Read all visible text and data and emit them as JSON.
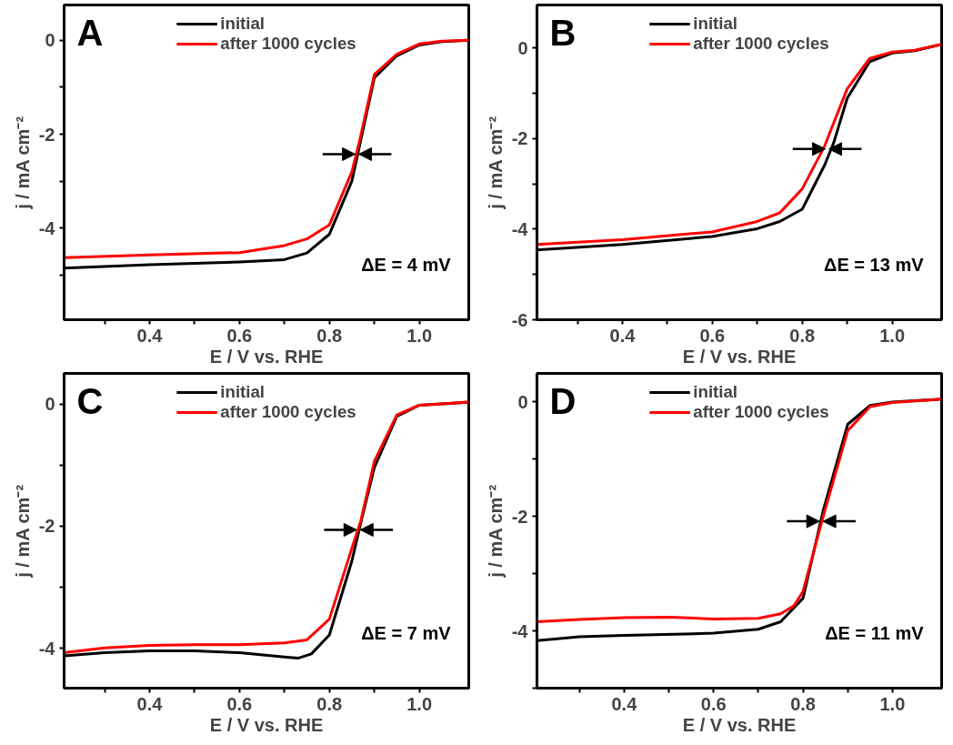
{
  "chart_data": [
    {
      "type": "line",
      "xlabel": "E / V vs. RHE",
      "ylabel": "j / mA cm⁻²",
      "xlim": [
        0.21,
        1.11
      ],
      "ylim": [
        -5.95,
        0.75
      ],
      "xticks": [
        {
          "value": 0.3,
          "label": null
        },
        0.4,
        {
          "value": 0.5,
          "label": null
        },
        0.6,
        {
          "value": 0.7,
          "label": null
        },
        0.8,
        {
          "value": 0.9,
          "label": null
        },
        {
          "value": 1.0,
          "label": "1.0"
        }
      ],
      "yticks": [
        {
          "value": -5,
          "label": null
        },
        -4,
        {
          "value": -3,
          "label": null
        },
        -2,
        {
          "value": -1,
          "label": null
        },
        0
      ],
      "legend": "top",
      "grid": false,
      "line_style": "solid",
      "marker": "none",
      "annotations": [
        "A",
        "ΔE = 4 mV"
      ],
      "series": [
        {
          "name": "initial",
          "color": "#000000",
          "x": [
            0.21,
            0.4,
            0.6,
            0.7,
            0.75,
            0.8,
            0.85,
            0.867,
            0.9,
            0.95,
            1.0,
            1.05,
            1.11
          ],
          "values": [
            -4.85,
            -4.78,
            -4.72,
            -4.67,
            -4.53,
            -4.13,
            -3.0,
            -2.25,
            -0.8,
            -0.33,
            -0.1,
            -0.03,
            0.0
          ]
        },
        {
          "name": "after 1000 cycles",
          "color": "#ff0000",
          "x": [
            0.21,
            0.4,
            0.6,
            0.7,
            0.75,
            0.8,
            0.85,
            0.867,
            0.9,
            0.95,
            1.0,
            1.05,
            1.11
          ],
          "values": [
            -4.63,
            -4.57,
            -4.52,
            -4.37,
            -4.23,
            -3.93,
            -2.8,
            -2.15,
            -0.73,
            -0.3,
            -0.08,
            -0.02,
            0.0
          ]
        }
      ]
    },
    {
      "type": "line",
      "xlabel": "E / V vs. RHE",
      "ylabel": "j / mA cm⁻²",
      "xlim": [
        0.21,
        1.11
      ],
      "ylim": [
        -6,
        0.95
      ],
      "xticks": [
        {
          "value": 0.3,
          "label": null
        },
        0.4,
        {
          "value": 0.5,
          "label": null
        },
        0.6,
        {
          "value": 0.7,
          "label": null
        },
        0.8,
        {
          "value": 0.9,
          "label": null
        },
        {
          "value": 1.0,
          "label": "1.0"
        }
      ],
      "yticks": [
        -6,
        {
          "value": -5,
          "label": null
        },
        -4,
        {
          "value": -3,
          "label": null
        },
        -2,
        {
          "value": -1,
          "label": null
        },
        0
      ],
      "legend": "top",
      "grid": false,
      "line_style": "solid",
      "marker": "none",
      "annotations": [
        "B",
        "ΔE = 13 mV"
      ],
      "series": [
        {
          "name": "initial",
          "color": "#000000",
          "x": [
            0.21,
            0.4,
            0.6,
            0.7,
            0.75,
            0.8,
            0.85,
            0.87,
            0.9,
            0.95,
            1.0,
            1.05,
            1.11
          ],
          "values": [
            -4.46,
            -4.34,
            -4.16,
            -3.99,
            -3.83,
            -3.56,
            -2.58,
            -2.09,
            -1.11,
            -0.3,
            -0.11,
            -0.06,
            0.08
          ]
        },
        {
          "name": "after 1000 cycles",
          "color": "#ff0000",
          "x": [
            0.21,
            0.4,
            0.6,
            0.7,
            0.75,
            0.8,
            0.85,
            0.87,
            0.9,
            0.95,
            1.0,
            1.05,
            1.11
          ],
          "values": [
            -4.34,
            -4.23,
            -4.06,
            -3.83,
            -3.64,
            -3.11,
            -2.16,
            -1.65,
            -0.9,
            -0.23,
            -0.09,
            -0.05,
            0.08
          ]
        }
      ]
    },
    {
      "type": "line",
      "xlabel": "E / V vs. RHE",
      "ylabel": "j / mA cm⁻²",
      "xlim": [
        0.21,
        1.11
      ],
      "ylim": [
        -4.65,
        0.5
      ],
      "xticks": [
        {
          "value": 0.3,
          "label": null
        },
        0.4,
        {
          "value": 0.5,
          "label": null
        },
        0.6,
        {
          "value": 0.7,
          "label": null
        },
        0.8,
        {
          "value": 0.9,
          "label": null
        },
        {
          "value": 1.0,
          "label": "1.0"
        }
      ],
      "yticks": [
        -4,
        {
          "value": -3,
          "label": null
        },
        -2,
        {
          "value": -1,
          "label": null
        },
        0
      ],
      "legend": "top",
      "grid": false,
      "line_style": "solid",
      "marker": "none",
      "annotations": [
        "C",
        "ΔE = 7 mV"
      ],
      "series": [
        {
          "name": "initial",
          "color": "#000000",
          "x": [
            0.21,
            0.3,
            0.4,
            0.5,
            0.6,
            0.7,
            0.73,
            0.76,
            0.8,
            0.85,
            0.87,
            0.9,
            0.95,
            1.0,
            1.11
          ],
          "values": [
            -4.12,
            -4.07,
            -4.04,
            -4.04,
            -4.07,
            -4.14,
            -4.16,
            -4.09,
            -3.78,
            -2.57,
            -1.94,
            -1.04,
            -0.2,
            -0.02,
            0.03
          ]
        },
        {
          "name": "after 1000 cycles",
          "color": "#ff0000",
          "x": [
            0.21,
            0.3,
            0.4,
            0.5,
            0.6,
            0.7,
            0.75,
            0.8,
            0.85,
            0.87,
            0.9,
            0.95,
            1.0,
            1.11
          ],
          "values": [
            -4.07,
            -3.99,
            -3.95,
            -3.94,
            -3.94,
            -3.91,
            -3.86,
            -3.52,
            -2.36,
            -1.91,
            -0.94,
            -0.18,
            -0.02,
            0.03
          ]
        }
      ]
    },
    {
      "type": "line",
      "xlabel": "E / V vs. RHE",
      "ylabel": "j / mA cm⁻²",
      "xlim": [
        0.205,
        1.11
      ],
      "ylim": [
        -5,
        0.5
      ],
      "xticks": [
        {
          "value": 0.3,
          "label": null
        },
        0.4,
        {
          "value": 0.5,
          "label": null
        },
        0.6,
        {
          "value": 0.7,
          "label": null
        },
        0.8,
        {
          "value": 0.9,
          "label": null
        },
        {
          "value": 1.0,
          "label": "1.0"
        }
      ],
      "yticks": [
        {
          "value": -5,
          "label": null
        },
        -4,
        {
          "value": -3,
          "label": null
        },
        -2,
        {
          "value": -1,
          "label": null
        },
        0
      ],
      "legend": "top",
      "grid": false,
      "line_style": "solid",
      "marker": "none",
      "annotations": [
        "D",
        "ΔE = 11 mV"
      ],
      "series": [
        {
          "name": "initial",
          "color": "#000000",
          "x": [
            0.205,
            0.3,
            0.4,
            0.6,
            0.7,
            0.75,
            0.8,
            0.845,
            0.9,
            0.95,
            1.0,
            1.11
          ],
          "values": [
            -4.17,
            -4.1,
            -4.08,
            -4.04,
            -3.97,
            -3.84,
            -3.43,
            -1.9,
            -0.39,
            -0.06,
            0.0,
            0.05
          ]
        },
        {
          "name": "after 1000 cycles",
          "color": "#ff0000",
          "x": [
            0.205,
            0.3,
            0.4,
            0.5,
            0.6,
            0.7,
            0.75,
            0.78,
            0.8,
            0.845,
            0.9,
            0.95,
            1.0,
            1.11
          ],
          "values": [
            -3.84,
            -3.8,
            -3.77,
            -3.76,
            -3.79,
            -3.78,
            -3.7,
            -3.56,
            -3.31,
            -2.0,
            -0.5,
            -0.08,
            -0.01,
            0.05
          ]
        }
      ]
    }
  ]
}
